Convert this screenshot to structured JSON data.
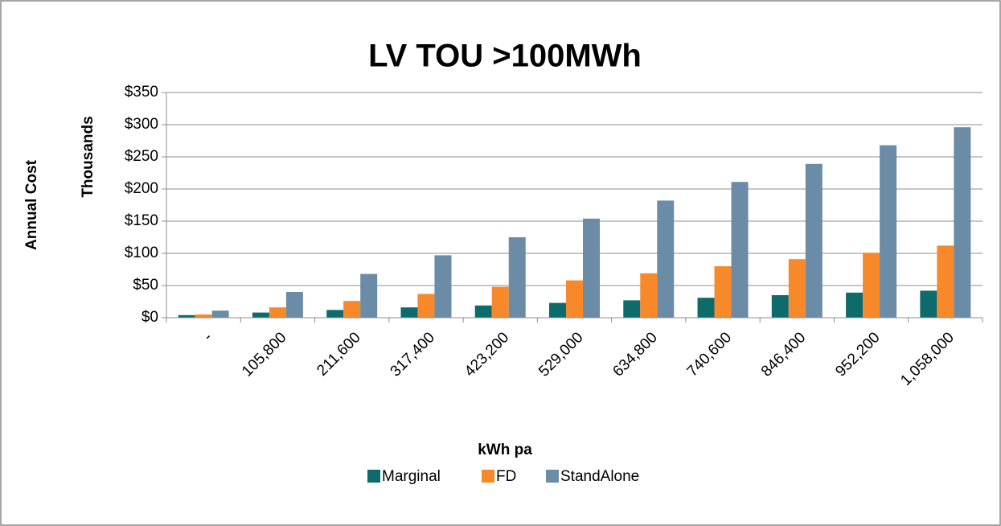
{
  "chart_data": {
    "type": "bar",
    "title": "LV TOU >100MWh",
    "x_label": "kWh pa",
    "y_label": "Annual Cost",
    "y_unit_label": "Thousands",
    "categories": [
      "-",
      "105,800",
      "211,600",
      "317,400",
      "423,200",
      "529,000",
      "634,800",
      "740,600",
      "846,400",
      "952,200",
      "1,058,000"
    ],
    "series": [
      {
        "name": "Marginal",
        "color": "#0e6b6b",
        "values": [
          4,
          8,
          12,
          16,
          19,
          23,
          27,
          31,
          35,
          39,
          42
        ]
      },
      {
        "name": "FD",
        "color": "#f7892a",
        "values": [
          5,
          16,
          26,
          37,
          48,
          58,
          69,
          80,
          91,
          101,
          112
        ]
      },
      {
        "name": "StandAlone",
        "color": "#6a8ca6",
        "values": [
          11,
          40,
          68,
          97,
          125,
          154,
          182,
          211,
          239,
          268,
          296
        ]
      }
    ],
    "ylim": [
      0,
      350
    ],
    "yticks": [
      {
        "value": 0,
        "label": "$0"
      },
      {
        "value": 50,
        "label": "$50"
      },
      {
        "value": 100,
        "label": "$100"
      },
      {
        "value": 150,
        "label": "$150"
      },
      {
        "value": 200,
        "label": "$200"
      },
      {
        "value": 250,
        "label": "$250"
      },
      {
        "value": 300,
        "label": "$300"
      },
      {
        "value": 350,
        "label": "$350"
      }
    ],
    "grid": true,
    "legend": "bottom"
  }
}
